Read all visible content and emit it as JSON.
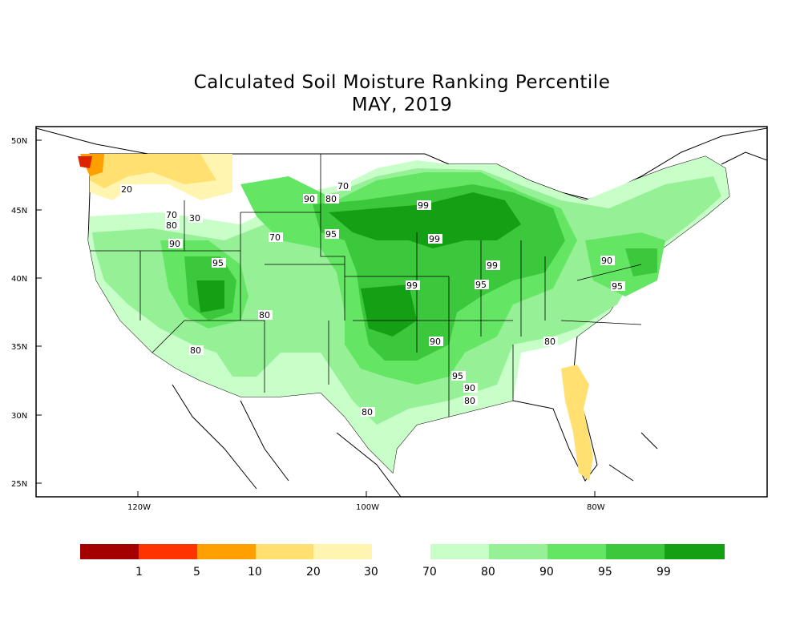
{
  "title": "Calculated Soil Moisture Ranking Percentile",
  "subtitle": "MAY, 2019",
  "axes": {
    "lat_labels": [
      "50N",
      "45N",
      "40N",
      "35N",
      "30N",
      "25N"
    ],
    "lon_labels": [
      "120W",
      "100W",
      "80W"
    ]
  },
  "contour_labels": [
    "20",
    "70",
    "30",
    "80",
    "90",
    "70",
    "90",
    "80",
    "70",
    "95",
    "99",
    "99",
    "99",
    "95",
    "99",
    "95",
    "90",
    "95",
    "80",
    "80",
    "90",
    "95",
    "90",
    "80",
    "80",
    "80"
  ],
  "legend": {
    "dry": {
      "colors": [
        "#a50000",
        "#ff3300",
        "#ffa000",
        "#ffe070",
        "#fff5b0"
      ],
      "labels": [
        "1",
        "5",
        "10",
        "20",
        "30"
      ]
    },
    "wet": {
      "colors": [
        "#c8ffc8",
        "#96f096",
        "#64e664",
        "#3cc83c",
        "#14a014"
      ],
      "labels": [
        "70",
        "80",
        "90",
        "95",
        "99"
      ]
    }
  }
}
